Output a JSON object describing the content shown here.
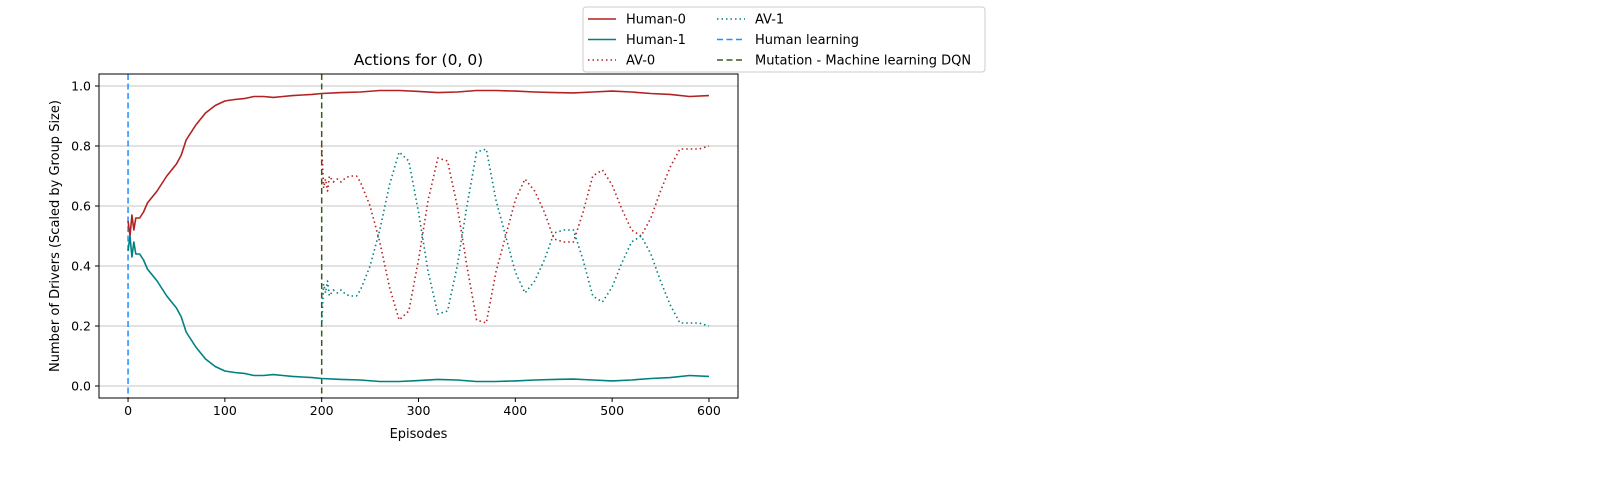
{
  "chart_data": {
    "type": "line",
    "title": "Actions for (0, 0)",
    "xlabel": "Episodes",
    "ylabel": "Number of Drivers (Scaled by Group Size)",
    "xlim": [
      -30,
      630
    ],
    "ylim": [
      -0.04,
      1.04
    ],
    "xticks": [
      0,
      100,
      200,
      300,
      400,
      500,
      600
    ],
    "yticks": [
      0.0,
      0.2,
      0.4,
      0.6,
      0.8,
      1.0
    ],
    "ytick_labels": [
      "0.0",
      "0.2",
      "0.4",
      "0.6",
      "0.8",
      "1.0"
    ],
    "grid": "horizontal",
    "legend_placement": "above-right",
    "series": [
      {
        "name": "Human-0",
        "color": "#b22222",
        "style": "solid",
        "points": [
          [
            0,
            0.55
          ],
          [
            2,
            0.5
          ],
          [
            4,
            0.57
          ],
          [
            6,
            0.52
          ],
          [
            8,
            0.56
          ],
          [
            12,
            0.56
          ],
          [
            16,
            0.58
          ],
          [
            20,
            0.61
          ],
          [
            25,
            0.63
          ],
          [
            30,
            0.65
          ],
          [
            40,
            0.7
          ],
          [
            50,
            0.74
          ],
          [
            55,
            0.77
          ],
          [
            60,
            0.82
          ],
          [
            70,
            0.87
          ],
          [
            80,
            0.91
          ],
          [
            90,
            0.935
          ],
          [
            100,
            0.95
          ],
          [
            110,
            0.955
          ],
          [
            120,
            0.958
          ],
          [
            130,
            0.965
          ],
          [
            140,
            0.965
          ],
          [
            150,
            0.962
          ],
          [
            160,
            0.965
          ],
          [
            170,
            0.968
          ],
          [
            180,
            0.97
          ],
          [
            190,
            0.972
          ],
          [
            200,
            0.975
          ],
          [
            220,
            0.978
          ],
          [
            240,
            0.98
          ],
          [
            260,
            0.985
          ],
          [
            280,
            0.985
          ],
          [
            300,
            0.982
          ],
          [
            320,
            0.978
          ],
          [
            340,
            0.98
          ],
          [
            360,
            0.985
          ],
          [
            380,
            0.985
          ],
          [
            400,
            0.983
          ],
          [
            420,
            0.98
          ],
          [
            440,
            0.978
          ],
          [
            460,
            0.977
          ],
          [
            480,
            0.98
          ],
          [
            500,
            0.983
          ],
          [
            520,
            0.98
          ],
          [
            540,
            0.975
          ],
          [
            560,
            0.972
          ],
          [
            580,
            0.965
          ],
          [
            600,
            0.968
          ]
        ]
      },
      {
        "name": "Human-1",
        "color": "#008080",
        "style": "solid",
        "points": [
          [
            0,
            0.45
          ],
          [
            2,
            0.5
          ],
          [
            4,
            0.43
          ],
          [
            6,
            0.48
          ],
          [
            8,
            0.44
          ],
          [
            12,
            0.44
          ],
          [
            16,
            0.42
          ],
          [
            20,
            0.39
          ],
          [
            25,
            0.37
          ],
          [
            30,
            0.35
          ],
          [
            40,
            0.3
          ],
          [
            50,
            0.26
          ],
          [
            55,
            0.23
          ],
          [
            60,
            0.18
          ],
          [
            70,
            0.13
          ],
          [
            80,
            0.09
          ],
          [
            90,
            0.065
          ],
          [
            100,
            0.05
          ],
          [
            110,
            0.045
          ],
          [
            120,
            0.042
          ],
          [
            130,
            0.035
          ],
          [
            140,
            0.035
          ],
          [
            150,
            0.038
          ],
          [
            160,
            0.035
          ],
          [
            170,
            0.032
          ],
          [
            180,
            0.03
          ],
          [
            190,
            0.028
          ],
          [
            200,
            0.025
          ],
          [
            220,
            0.022
          ],
          [
            240,
            0.02
          ],
          [
            260,
            0.015
          ],
          [
            280,
            0.015
          ],
          [
            300,
            0.018
          ],
          [
            320,
            0.022
          ],
          [
            340,
            0.02
          ],
          [
            360,
            0.015
          ],
          [
            380,
            0.015
          ],
          [
            400,
            0.017
          ],
          [
            420,
            0.02
          ],
          [
            440,
            0.022
          ],
          [
            460,
            0.023
          ],
          [
            480,
            0.02
          ],
          [
            500,
            0.017
          ],
          [
            520,
            0.02
          ],
          [
            540,
            0.025
          ],
          [
            560,
            0.028
          ],
          [
            580,
            0.035
          ],
          [
            600,
            0.032
          ]
        ]
      },
      {
        "name": "AV-0",
        "color": "#b22222",
        "style": "dotted",
        "points": [
          [
            200,
            0.8
          ],
          [
            202,
            0.66
          ],
          [
            204,
            0.69
          ],
          [
            206,
            0.65
          ],
          [
            208,
            0.7
          ],
          [
            212,
            0.68
          ],
          [
            216,
            0.69
          ],
          [
            220,
            0.68
          ],
          [
            225,
            0.695
          ],
          [
            230,
            0.7
          ],
          [
            236,
            0.7
          ],
          [
            240,
            0.68
          ],
          [
            250,
            0.6
          ],
          [
            260,
            0.48
          ],
          [
            270,
            0.33
          ],
          [
            280,
            0.22
          ],
          [
            290,
            0.25
          ],
          [
            300,
            0.42
          ],
          [
            310,
            0.62
          ],
          [
            320,
            0.76
          ],
          [
            330,
            0.75
          ],
          [
            340,
            0.6
          ],
          [
            350,
            0.4
          ],
          [
            360,
            0.22
          ],
          [
            370,
            0.21
          ],
          [
            380,
            0.38
          ],
          [
            390,
            0.5
          ],
          [
            400,
            0.62
          ],
          [
            410,
            0.69
          ],
          [
            420,
            0.65
          ],
          [
            430,
            0.58
          ],
          [
            440,
            0.49
          ],
          [
            450,
            0.48
          ],
          [
            460,
            0.48
          ],
          [
            470,
            0.58
          ],
          [
            480,
            0.7
          ],
          [
            490,
            0.72
          ],
          [
            500,
            0.67
          ],
          [
            510,
            0.59
          ],
          [
            520,
            0.52
          ],
          [
            530,
            0.5
          ],
          [
            540,
            0.56
          ],
          [
            550,
            0.65
          ],
          [
            560,
            0.73
          ],
          [
            570,
            0.79
          ],
          [
            580,
            0.79
          ],
          [
            590,
            0.79
          ],
          [
            600,
            0.8
          ]
        ]
      },
      {
        "name": "AV-1",
        "color": "#008080",
        "style": "dotted",
        "points": [
          [
            200,
            0.2
          ],
          [
            202,
            0.34
          ],
          [
            204,
            0.31
          ],
          [
            206,
            0.35
          ],
          [
            208,
            0.3
          ],
          [
            212,
            0.32
          ],
          [
            216,
            0.31
          ],
          [
            220,
            0.32
          ],
          [
            225,
            0.305
          ],
          [
            230,
            0.3
          ],
          [
            236,
            0.3
          ],
          [
            240,
            0.32
          ],
          [
            250,
            0.4
          ],
          [
            260,
            0.52
          ],
          [
            270,
            0.67
          ],
          [
            280,
            0.78
          ],
          [
            290,
            0.75
          ],
          [
            300,
            0.58
          ],
          [
            310,
            0.38
          ],
          [
            320,
            0.24
          ],
          [
            330,
            0.25
          ],
          [
            340,
            0.4
          ],
          [
            350,
            0.6
          ],
          [
            360,
            0.78
          ],
          [
            370,
            0.79
          ],
          [
            380,
            0.62
          ],
          [
            390,
            0.5
          ],
          [
            400,
            0.38
          ],
          [
            410,
            0.31
          ],
          [
            420,
            0.35
          ],
          [
            430,
            0.42
          ],
          [
            440,
            0.51
          ],
          [
            450,
            0.52
          ],
          [
            460,
            0.52
          ],
          [
            470,
            0.42
          ],
          [
            480,
            0.3
          ],
          [
            490,
            0.28
          ],
          [
            500,
            0.33
          ],
          [
            510,
            0.41
          ],
          [
            520,
            0.48
          ],
          [
            530,
            0.5
          ],
          [
            540,
            0.44
          ],
          [
            550,
            0.35
          ],
          [
            560,
            0.27
          ],
          [
            570,
            0.21
          ],
          [
            580,
            0.21
          ],
          [
            590,
            0.21
          ],
          [
            600,
            0.2
          ]
        ]
      }
    ],
    "vlines": [
      {
        "name": "Human learning",
        "x": 0,
        "color": "#1e90ff",
        "style": "dashed"
      },
      {
        "name": "Mutation - Machine learning DQN",
        "x": 200,
        "color": "#3d5a1a",
        "style": "dashed"
      }
    ],
    "legend": {
      "entries": [
        {
          "label": "Human-0",
          "color": "#b22222",
          "style": "solid"
        },
        {
          "label": "Human-1",
          "color": "#008080",
          "style": "solid"
        },
        {
          "label": "AV-0",
          "color": "#b22222",
          "style": "dotted"
        },
        {
          "label": "AV-1",
          "color": "#008080",
          "style": "dotted"
        },
        {
          "label": "Human learning",
          "color": "#1e90ff",
          "style": "dashed"
        },
        {
          "label": "Mutation - Machine learning DQN",
          "color": "#3d5a1a",
          "style": "dashed"
        }
      ]
    }
  }
}
